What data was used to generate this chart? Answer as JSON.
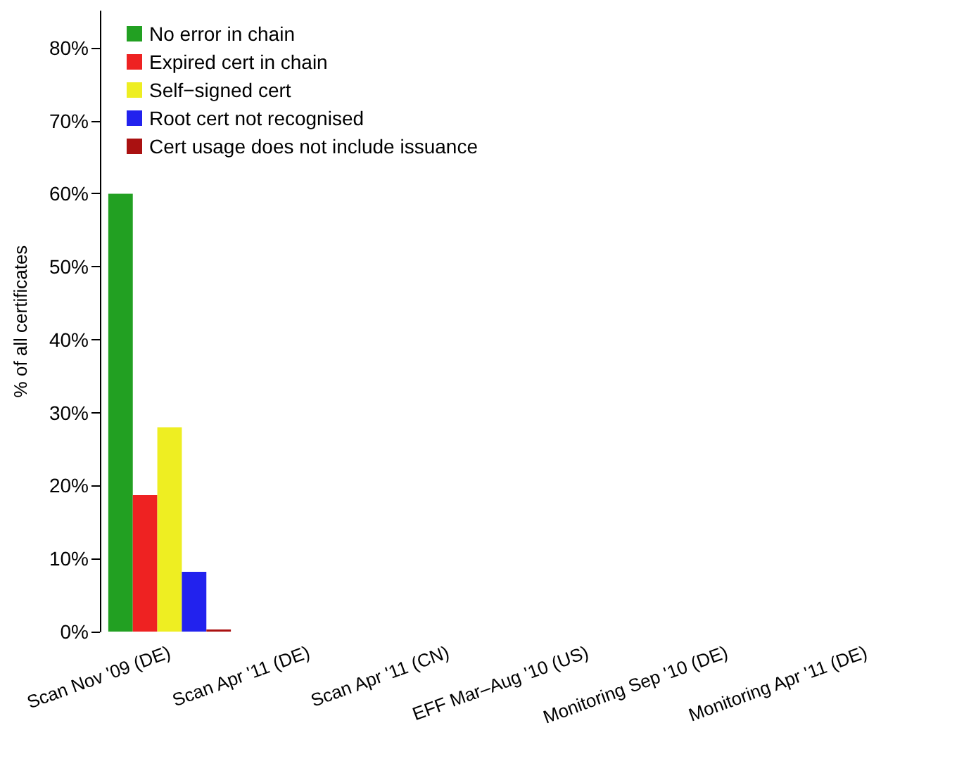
{
  "chart_data": {
    "type": "bar",
    "ylabel": "% of all certificates",
    "categories": [
      "Scan Nov '09 (DE)",
      "Scan Apr '11 (DE)",
      "Scan Apr '11 (CN)",
      "EFF Mar–Aug '10 (US)",
      "Monitoring Sep '10 (DE)",
      "Monitoring Apr '11 (DE)"
    ],
    "series": [
      {
        "name": "No error in chain",
        "color": "#22a022",
        "values": [
          60,
          null,
          null,
          null,
          null,
          null
        ]
      },
      {
        "name": "Expired cert in chain",
        "color": "#ee2222",
        "values": [
          18.7,
          null,
          null,
          null,
          null,
          null
        ]
      },
      {
        "name": "Self−signed cert",
        "color": "#eeee22",
        "values": [
          28,
          null,
          null,
          null,
          null,
          null
        ]
      },
      {
        "name": "Root cert not recognised",
        "color": "#2222ee",
        "values": [
          8.2,
          null,
          null,
          null,
          null,
          null
        ]
      },
      {
        "name": "Cert usage does not include issuance",
        "color": "#aa1111",
        "values": [
          0.3,
          null,
          null,
          null,
          null,
          null
        ]
      }
    ],
    "ylim": [
      0,
      85
    ],
    "yticks": [
      {
        "value": 0,
        "label": "0%"
      },
      {
        "value": 10,
        "label": "10%"
      },
      {
        "value": 20,
        "label": "20%"
      },
      {
        "value": 30,
        "label": "30%"
      },
      {
        "value": 40,
        "label": "40%"
      },
      {
        "value": 50,
        "label": "50%"
      },
      {
        "value": 60,
        "label": "60%"
      },
      {
        "value": 70,
        "label": "70%"
      },
      {
        "value": 80,
        "label": "80%"
      }
    ],
    "legend": "top left",
    "grid": false
  }
}
